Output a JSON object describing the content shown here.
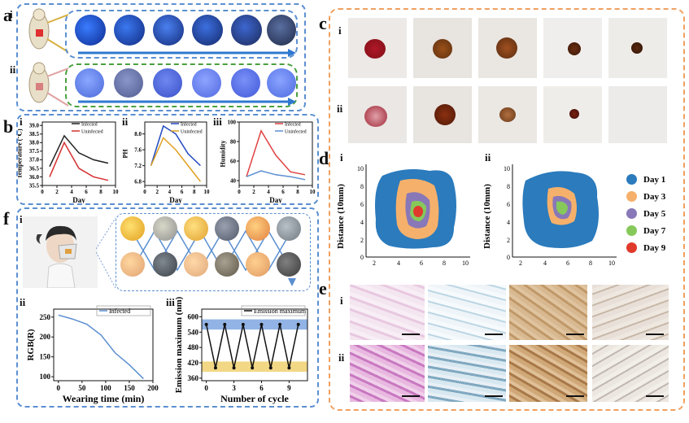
{
  "labels": {
    "a": "a",
    "b": "b",
    "c": "c",
    "d": "d",
    "e": "e",
    "f": "f",
    "i": "i",
    "ii": "ii",
    "iii": "iii"
  },
  "colors": {
    "blue_border": "#5b8fd1",
    "orange_border": "#f0a060",
    "green_border": "#4aa040",
    "day1": "#2b7bbd",
    "day3": "#f5b06b",
    "day5": "#8878b8",
    "day7": "#86c95a",
    "day9": "#e03a2c"
  },
  "legend_d": [
    "Day 1",
    "Day 3",
    "Day 5",
    "Day 7",
    "Day 9"
  ],
  "chart_data": [
    {
      "id": "b-i",
      "type": "line",
      "xlabel": "Day",
      "ylabel": "Temperature (℃)",
      "x": [
        1,
        3,
        5,
        7,
        9
      ],
      "xticks": [
        0,
        2,
        4,
        6,
        8,
        10
      ],
      "yticks": [
        "35.5",
        "36.0",
        "36.5",
        "37.0",
        "37.5",
        "38.0",
        "38.5",
        "39.0"
      ],
      "ylim": [
        35.5,
        39.2
      ],
      "xlim": [
        0,
        10
      ],
      "series": [
        {
          "name": "Infected",
          "color": "#222222",
          "values": [
            36.6,
            38.4,
            37.4,
            37.0,
            36.8
          ]
        },
        {
          "name": "Uninfected",
          "color": "#d43030",
          "values": [
            36.0,
            38.0,
            36.5,
            36.0,
            35.8
          ]
        }
      ]
    },
    {
      "id": "b-ii",
      "type": "line",
      "xlabel": "Day",
      "ylabel": "PH",
      "x": [
        1,
        3,
        5,
        7,
        9
      ],
      "xticks": [
        0,
        2,
        4,
        6,
        8,
        10
      ],
      "yticks": [
        "6.8",
        "7.2",
        "7.6",
        "8.0"
      ],
      "ylim": [
        6.7,
        8.3
      ],
      "xlim": [
        0,
        10
      ],
      "series": [
        {
          "name": "Infected",
          "color": "#2048c0",
          "values": [
            7.2,
            8.2,
            8.0,
            7.5,
            7.2
          ]
        },
        {
          "name": "Uninfected",
          "color": "#e0a020",
          "values": [
            7.2,
            7.9,
            7.6,
            7.2,
            6.8
          ]
        }
      ]
    },
    {
      "id": "b-iii",
      "type": "line",
      "xlabel": "Day",
      "ylabel": "Humidity",
      "x": [
        1,
        3,
        5,
        7,
        9
      ],
      "xticks": [
        0,
        2,
        4,
        6,
        8,
        10
      ],
      "yticks": [
        "40",
        "60",
        "80",
        "100"
      ],
      "ylim": [
        35,
        100
      ],
      "xlim": [
        0,
        10
      ],
      "series": [
        {
          "name": "Infected",
          "color": "#e04040",
          "values": [
            44,
            91,
            66,
            49,
            46
          ]
        },
        {
          "name": "Uninfected",
          "color": "#5b8fd1",
          "values": [
            44,
            50,
            46,
            44,
            41
          ]
        }
      ]
    },
    {
      "id": "f-ii",
      "type": "line",
      "xlabel": "Wearing time (min)",
      "ylabel": "RGB(R)",
      "x": [
        0,
        30,
        60,
        90,
        120,
        150,
        180
      ],
      "xticks": [
        0,
        50,
        100,
        150,
        200
      ],
      "yticks": [
        "100",
        "150",
        "200",
        "250"
      ],
      "ylim": [
        90,
        270
      ],
      "xlim": [
        -10,
        200
      ],
      "series": [
        {
          "name": "Infected",
          "color": "#5b8fd1",
          "values": [
            255,
            245,
            232,
            205,
            160,
            130,
            95
          ]
        }
      ]
    },
    {
      "id": "f-iii",
      "type": "line",
      "xlabel": "Number of cycle",
      "ylabel": "Emission maximum (nm)",
      "x": [
        0,
        1,
        2,
        3,
        4,
        5,
        6,
        7,
        8,
        9,
        10
      ],
      "xticks": [
        0,
        3,
        6,
        9
      ],
      "yticks": [
        "360",
        "420",
        "480",
        "540",
        "600"
      ],
      "ylim": [
        350,
        630
      ],
      "xlim": [
        -0.5,
        11
      ],
      "bands": [
        {
          "from": 550,
          "to": 590,
          "color": "#7fa6e0"
        },
        {
          "from": 385,
          "to": 425,
          "color": "#f0d070"
        }
      ],
      "series": [
        {
          "name": "Emission maximum",
          "color": "#111111",
          "values": [
            570,
            400,
            570,
            400,
            570,
            400,
            570,
            400,
            570,
            400,
            570
          ]
        }
      ]
    }
  ]
}
